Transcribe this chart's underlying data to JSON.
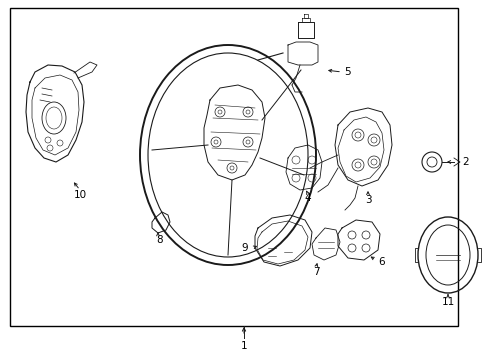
{
  "background_color": "#ffffff",
  "border_color": "#000000",
  "line_color": "#1a1a1a",
  "label_color": "#000000",
  "fig_width": 4.89,
  "fig_height": 3.6,
  "dpi": 100,
  "label_fontsize": 7.5,
  "border_lw": 1.0,
  "part_lw": 0.6
}
